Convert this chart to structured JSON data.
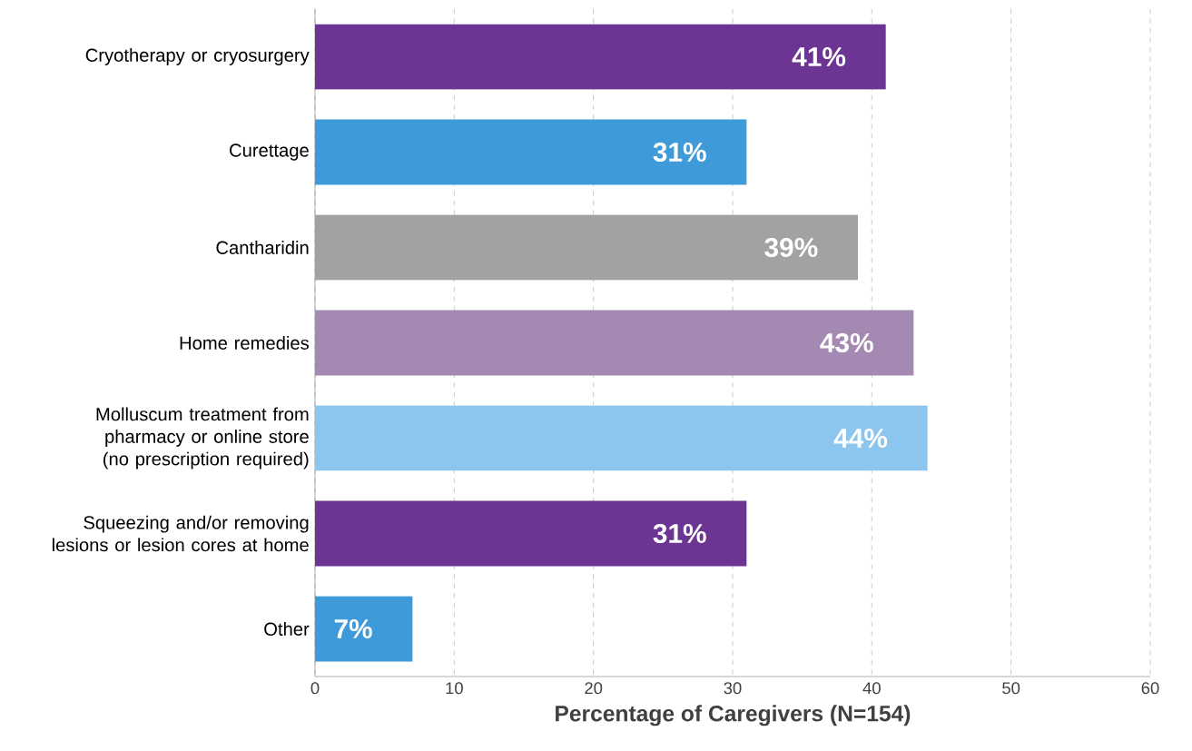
{
  "chart_data": {
    "type": "bar",
    "orientation": "horizontal",
    "categories": [
      "Cryotherapy or cryosurgery",
      "Curettage",
      "Cantharidin",
      "Home remedies",
      "Molluscum treatment from pharmacy or online store (no prescription required)",
      "Squeezing and/or removing lesions or lesion cores at home",
      "Other"
    ],
    "values": [
      41,
      31,
      39,
      43,
      44,
      31,
      7
    ],
    "colors": [
      "#6c3593",
      "#3f9ad9",
      "#a2a2a2",
      "#a489b3",
      "#8cc5ed",
      "#6c3593",
      "#3f9ad9"
    ],
    "value_labels": [
      "41%",
      "31%",
      "39%",
      "43%",
      "44%",
      "31%",
      "7%"
    ],
    "xlim": [
      0,
      60
    ],
    "xticks": [
      0,
      10,
      20,
      30,
      40,
      50,
      60
    ],
    "xlabel": "Percentage of Caregivers (N=154)",
    "grid": "x"
  }
}
